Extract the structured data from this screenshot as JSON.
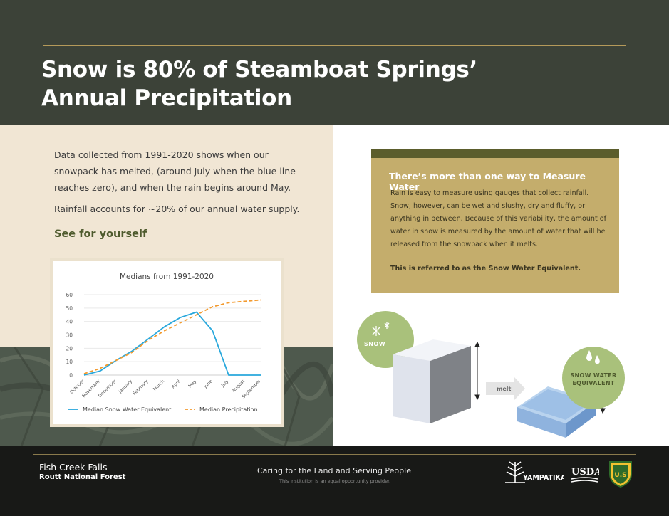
{
  "header": {
    "title_line1": "Snow is 80% of Steamboat Springs’",
    "title_line2": "Annual Precipitation"
  },
  "intro": {
    "text": "Data collected from 1991-2020 shows when our snowpack has melted, (around July when the blue line reaches zero), and when the rain begins around May.",
    "rain_text": "Rainfall accounts for ~20% of our annual water supply.",
    "see_link": "See for yourself"
  },
  "chart_data": {
    "type": "line",
    "title": "Medians from 1991-2020",
    "categories": [
      "October",
      "November",
      "December",
      "January",
      "February",
      "March",
      "April",
      "May",
      "June",
      "July",
      "August",
      "September"
    ],
    "ylim": [
      0,
      60
    ],
    "yticks": [
      0,
      10,
      20,
      30,
      40,
      50,
      60
    ],
    "grid": true,
    "legend_position": "bottom",
    "series": [
      {
        "name": "Median Snow Water Equivalent",
        "color": "#29a8dc",
        "style": "solid",
        "values": [
          0,
          3,
          11,
          18,
          27,
          36,
          43,
          47,
          33,
          0,
          0,
          0
        ]
      },
      {
        "name": "Median Precipitation",
        "color": "#f39a2e",
        "style": "dashed",
        "values": [
          1,
          5,
          11,
          17,
          26,
          33,
          39,
          45,
          51,
          54,
          55,
          56
        ]
      }
    ]
  },
  "info": {
    "title": "There’s more than one way to Measure Water",
    "body": "Rain is easy to measure using gauges that collect rainfall. Snow, however, can be wet and slushy, dry and fluffy, or anything in between. Because of this variability, the amount of water in snow is measured by the amount of water that will be released from the snowpack when it melts.",
    "note": "This is referred to as the Snow Water Equivalent."
  },
  "diagram": {
    "snow_label": "SNOW",
    "melt_label": "melt",
    "swe_label_line1": "SNOW WATER",
    "swe_label_line2": "EQUIVALENT"
  },
  "footer": {
    "location_name": "Fish Creek Falls",
    "forest_name": "Routt National Forest",
    "motto": "Caring for the Land and Serving People",
    "eeo": "This institution is an equal opportunity provider.",
    "yampatika_logo_text": "YAMPATIKA",
    "usda_logo_text": "USDA",
    "usfs_logo_text": "U.S"
  },
  "colors": {
    "header_bg": "#3c4238",
    "accent_gold": "#b59a5a",
    "left_bg": "#f1e6d4",
    "info_box": "#c4ad6c",
    "info_bar": "#5b5d2c",
    "sage_circle": "#a9c17b",
    "footer_bg": "#181917"
  }
}
